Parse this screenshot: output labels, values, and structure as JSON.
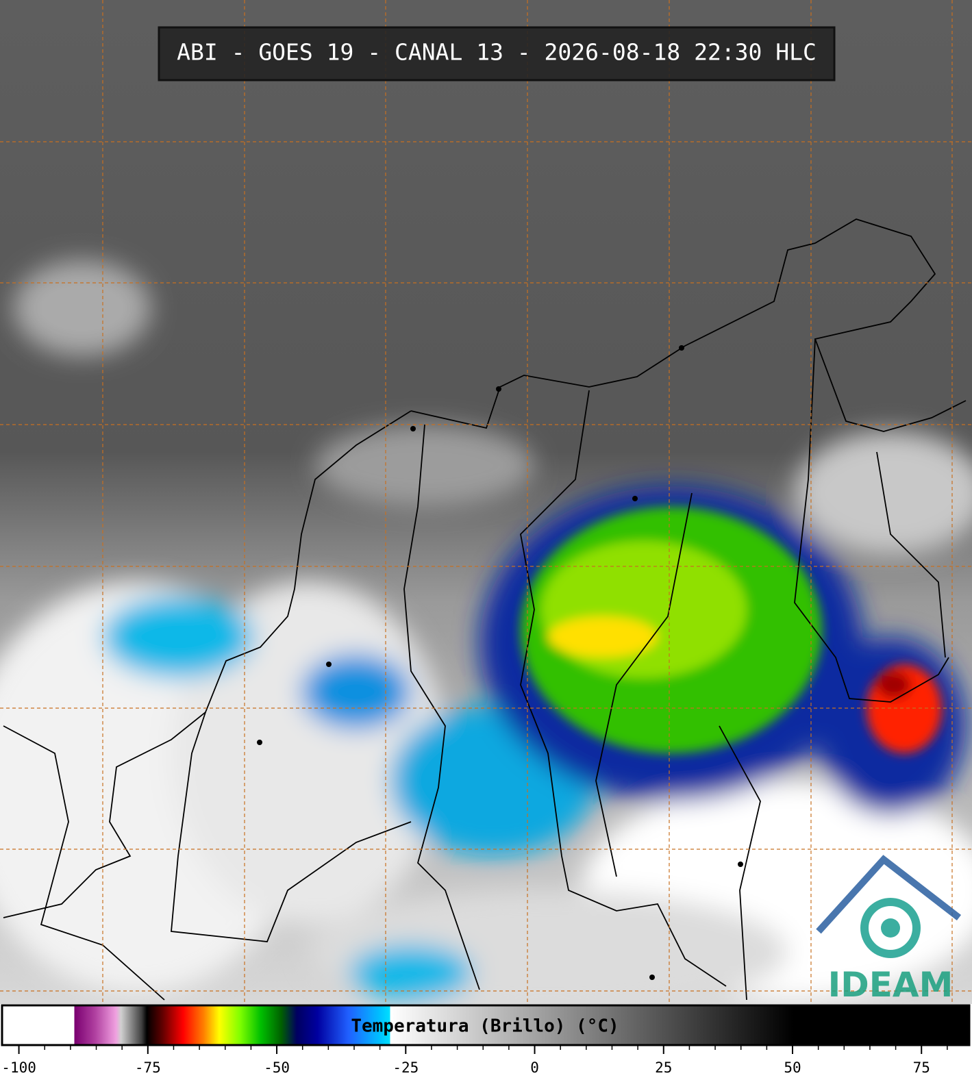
{
  "header": {
    "title": "ABI - GOES 19 - CANAL 13 - 2026-08-18 22:30 HLC"
  },
  "colorbar": {
    "label": "Temperatura (Brillo) (°C)",
    "range": [
      -103,
      84
    ],
    "ticks": [
      -100,
      -75,
      -50,
      -25,
      0,
      25,
      50,
      75
    ],
    "stops": [
      [
        -103,
        "#ffffff"
      ],
      [
        -89,
        "#ffffff"
      ],
      [
        -89,
        "#7a0070"
      ],
      [
        -85,
        "#b040a0"
      ],
      [
        -81,
        "#f0a0e0"
      ],
      [
        -80,
        "#d0d0d0"
      ],
      [
        -76,
        "#404040"
      ],
      [
        -75,
        "#000000"
      ],
      [
        -72,
        "#600000"
      ],
      [
        -68,
        "#ff0000"
      ],
      [
        -64,
        "#ff8000"
      ],
      [
        -61,
        "#ffff00"
      ],
      [
        -57,
        "#80ff00"
      ],
      [
        -53,
        "#00c000"
      ],
      [
        -49,
        "#006000"
      ],
      [
        -46,
        "#000060"
      ],
      [
        -42,
        "#0000a0"
      ],
      [
        -36,
        "#2060ff"
      ],
      [
        -30,
        "#00c0ff"
      ],
      [
        -28,
        "#00e0ff"
      ],
      [
        -28,
        "#ffffff"
      ],
      [
        50,
        "#000000"
      ],
      [
        84,
        "#000000"
      ]
    ]
  },
  "logo": {
    "text": "IDEAM"
  }
}
